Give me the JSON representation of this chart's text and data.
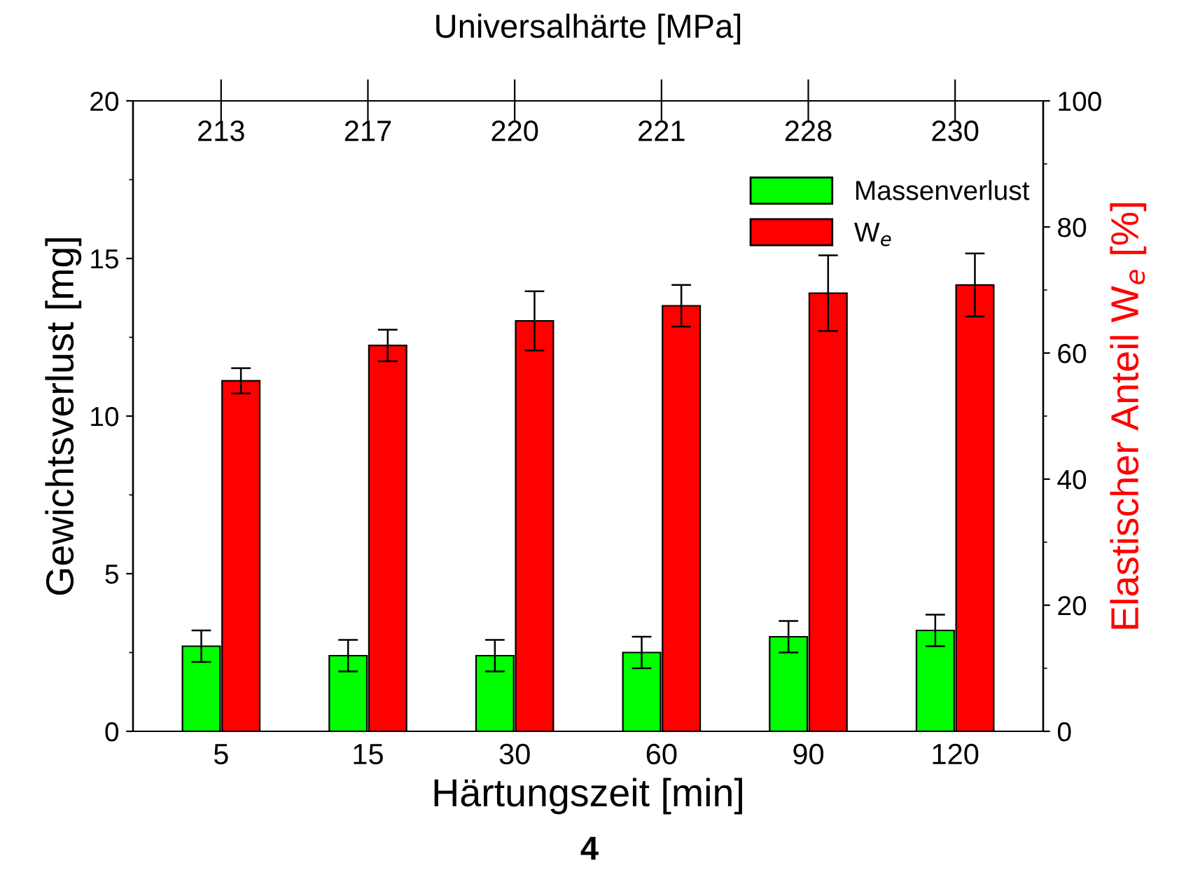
{
  "chart_data": {
    "type": "bar",
    "xlabel": "Härtungszeit [min]",
    "ylabel": "Gewichtsverlust [mg]",
    "y2label": "Elastischer Anteil W$_{e}$ [%]",
    "x2label": "Universalhärte [MPa]",
    "categories": [
      "5",
      "15",
      "30",
      "60",
      "90",
      "120"
    ],
    "series": [
      {
        "name": "Massenverlust",
        "color": "#00ff00",
        "values": [
          2.7,
          2.4,
          2.4,
          2.5,
          3.0,
          3.2
        ],
        "errors": [
          0.5,
          0.5,
          0.5,
          0.5,
          0.5,
          0.5
        ]
      },
      {
        "name": "W$_{e}$",
        "color": "#ff0000",
        "axis": "y2",
        "values": [
          55.6,
          61.2,
          65.1,
          67.5,
          69.5,
          70.8
        ],
        "errors": [
          2,
          2.5,
          4.7,
          3.3,
          6,
          5
        ]
      }
    ],
    "ylim": [
      0,
      20
    ],
    "yticks": [
      0,
      5,
      10,
      15,
      20
    ],
    "y2lim": [
      0,
      100
    ],
    "y2ticks": [
      0,
      20,
      40,
      60,
      80,
      100
    ],
    "legend": "top right",
    "grid": false,
    "annotations": [
      "213",
      "217",
      "220",
      "221",
      "228",
      "230",
      "4"
    ]
  }
}
